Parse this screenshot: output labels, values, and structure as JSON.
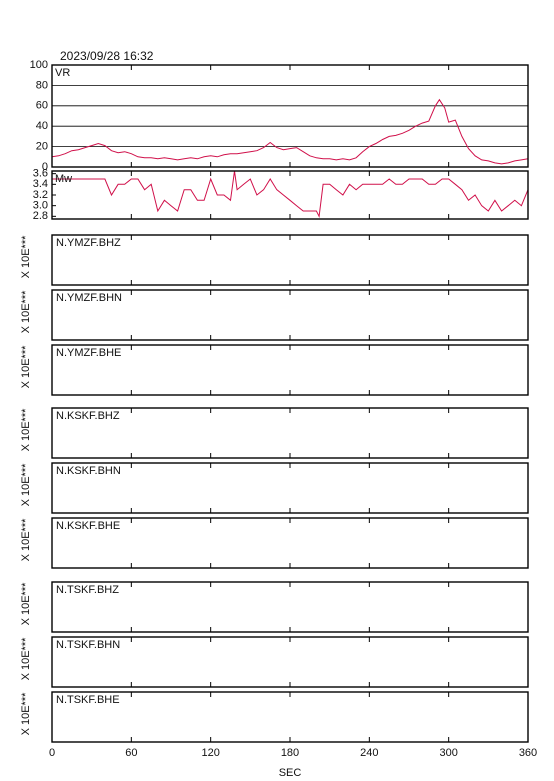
{
  "title": "2023/09/28 16:32",
  "x_axis": {
    "label": "SEC",
    "xlim": [
      0,
      360
    ],
    "xticks": [
      0,
      60,
      120,
      180,
      240,
      300,
      360
    ]
  },
  "chart_data": [
    {
      "type": "line",
      "label": "VR",
      "color": "#d0104a",
      "grid": true,
      "ylim": [
        0,
        100
      ],
      "yticks": [
        0,
        20,
        40,
        60,
        80,
        100
      ],
      "x": [
        0,
        5,
        10,
        15,
        20,
        25,
        30,
        35,
        40,
        45,
        50,
        55,
        60,
        65,
        70,
        75,
        80,
        85,
        90,
        95,
        100,
        105,
        110,
        115,
        120,
        125,
        130,
        135,
        140,
        145,
        150,
        155,
        160,
        165,
        170,
        175,
        180,
        185,
        190,
        195,
        200,
        205,
        210,
        215,
        220,
        225,
        230,
        235,
        240,
        245,
        250,
        255,
        260,
        265,
        270,
        275,
        280,
        285,
        290,
        293,
        297,
        300,
        305,
        310,
        315,
        320,
        325,
        330,
        335,
        340,
        345,
        350,
        355,
        360
      ],
      "values": [
        10,
        11,
        13,
        16,
        17,
        19,
        21,
        23,
        21,
        16,
        14,
        15,
        13,
        10,
        9,
        9,
        8,
        9,
        8,
        7,
        8,
        9,
        8,
        10,
        11,
        10,
        12,
        13,
        13,
        14,
        15,
        16,
        19,
        24,
        19,
        17,
        18,
        19,
        15,
        11,
        9,
        8,
        8,
        7,
        8,
        7,
        9,
        15,
        20,
        23,
        27,
        30,
        31,
        33,
        36,
        40,
        43,
        45,
        60,
        66,
        58,
        44,
        46,
        30,
        18,
        11,
        7,
        6,
        4,
        3,
        4,
        6,
        7,
        8
      ]
    },
    {
      "type": "line",
      "label": "Mw",
      "color": "#d0104a",
      "grid": false,
      "ylim": [
        2.75,
        3.65
      ],
      "yticks": [
        {
          "value": 2.8,
          "label": "2.8"
        },
        {
          "value": 3,
          "label": "3.0"
        },
        {
          "value": 3.2,
          "label": "3.2"
        },
        {
          "value": 3.4,
          "label": "3.4"
        },
        {
          "value": 3.6,
          "label": "3.6"
        }
      ],
      "x": [
        0,
        10,
        20,
        30,
        40,
        45,
        50,
        55,
        60,
        65,
        70,
        75,
        80,
        85,
        90,
        95,
        100,
        105,
        110,
        115,
        120,
        125,
        130,
        135,
        138,
        140,
        145,
        150,
        155,
        160,
        165,
        170,
        175,
        180,
        185,
        190,
        195,
        200,
        202,
        205,
        210,
        215,
        220,
        225,
        230,
        235,
        240,
        245,
        250,
        255,
        260,
        265,
        270,
        275,
        280,
        285,
        290,
        295,
        300,
        305,
        310,
        315,
        320,
        325,
        330,
        335,
        340,
        345,
        350,
        355,
        360
      ],
      "values": [
        3.5,
        3.5,
        3.5,
        3.5,
        3.5,
        3.2,
        3.4,
        3.4,
        3.5,
        3.5,
        3.3,
        3.4,
        2.9,
        3.1,
        3.0,
        2.9,
        3.3,
        3.3,
        3.1,
        3.1,
        3.5,
        3.2,
        3.2,
        3.1,
        3.65,
        3.3,
        3.4,
        3.5,
        3.2,
        3.3,
        3.5,
        3.3,
        3.2,
        3.1,
        3.0,
        2.9,
        2.9,
        2.9,
        2.8,
        3.4,
        3.4,
        3.3,
        3.2,
        3.4,
        3.3,
        3.4,
        3.4,
        3.4,
        3.4,
        3.5,
        3.4,
        3.4,
        3.5,
        3.5,
        3.5,
        3.4,
        3.4,
        3.5,
        3.5,
        3.4,
        3.3,
        3.1,
        3.2,
        3.0,
        2.9,
        3.1,
        2.9,
        3.0,
        3.1,
        3.0,
        3.3
      ]
    }
  ],
  "stations": [
    "N.YMZF.BHZ",
    "N.YMZF.BHN",
    "N.YMZF.BHE",
    "N.KSKF.BHZ",
    "N.KSKF.BHN",
    "N.KSKF.BHE",
    "N.TSKF.BHZ",
    "N.TSKF.BHN",
    "N.TSKF.BHE"
  ],
  "station_ylabel": "X 10E***"
}
